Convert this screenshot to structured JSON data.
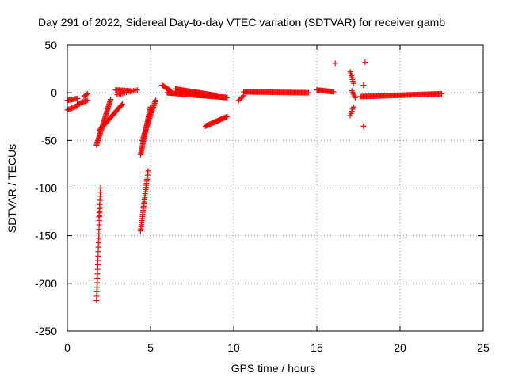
{
  "chart_data": {
    "type": "scatter",
    "title": "Day 291 of 2022, Sidereal Day-to-day VTEC variation (SDTVAR) for receiver gamb",
    "xlabel": "GPS time / hours",
    "ylabel": "SDTVAR / TECUs",
    "xlim": [
      0,
      25
    ],
    "ylim": [
      -250,
      50
    ],
    "xticks": [
      0,
      5,
      10,
      15,
      20,
      25
    ],
    "yticks": [
      50,
      0,
      -50,
      -100,
      -150,
      -200,
      -250
    ],
    "xtick_labels": [
      "0",
      "5",
      "10",
      "15",
      "20",
      "25"
    ],
    "ytick_labels": [
      "50",
      "0",
      "-50",
      "-100",
      "-150",
      "-200",
      "-250"
    ],
    "grid": true,
    "marker": "+",
    "color": "#ff0000",
    "segments": [
      {
        "x0": 0.0,
        "x1": 0.6,
        "y0": -8,
        "y1": -6,
        "n": 10
      },
      {
        "x0": 0.0,
        "x1": 0.6,
        "y0": -18,
        "y1": -14,
        "n": 10
      },
      {
        "x0": 0.6,
        "x1": 1.2,
        "y0": -12,
        "y1": -8,
        "n": 10
      },
      {
        "x0": 1.0,
        "x1": 1.2,
        "y0": -4,
        "y1": -1,
        "n": 4
      },
      {
        "x0": 1.75,
        "x1": 2.6,
        "y0": -55,
        "y1": -7,
        "n": 40
      },
      {
        "x0": 1.9,
        "x1": 3.3,
        "y0": -40,
        "y1": -12,
        "n": 30
      },
      {
        "x0": 1.75,
        "x1": 1.95,
        "y0": -218,
        "y1": -120,
        "n": 22
      },
      {
        "x0": 1.9,
        "x1": 2.0,
        "y0": -130,
        "y1": -100,
        "n": 8
      },
      {
        "x0": 2.9,
        "x1": 3.8,
        "y0": 3,
        "y1": 2,
        "n": 14
      },
      {
        "x0": 3.0,
        "x1": 4.2,
        "y0": -2,
        "y1": 3,
        "n": 12
      },
      {
        "x0": 4.4,
        "x1": 5.0,
        "y0": -65,
        "y1": -15,
        "n": 40
      },
      {
        "x0": 4.5,
        "x1": 5.3,
        "y0": -50,
        "y1": -8,
        "n": 30
      },
      {
        "x0": 4.4,
        "x1": 4.85,
        "y0": -145,
        "y1": -82,
        "n": 30
      },
      {
        "x0": 5.7,
        "x1": 6.2,
        "y0": 8,
        "y1": 2,
        "n": 10
      },
      {
        "x0": 6.0,
        "x1": 9.6,
        "y0": 0,
        "y1": -5,
        "n": 70
      },
      {
        "x0": 6.5,
        "x1": 9.0,
        "y0": 4,
        "y1": -3,
        "n": 45
      },
      {
        "x0": 8.3,
        "x1": 9.6,
        "y0": -35,
        "y1": -25,
        "n": 25
      },
      {
        "x0": 10.3,
        "x1": 10.6,
        "y0": -8,
        "y1": -3,
        "n": 5
      },
      {
        "x0": 10.6,
        "x1": 14.5,
        "y0": 1,
        "y1": 0,
        "n": 65
      },
      {
        "x0": 15.0,
        "x1": 16.0,
        "y0": 3,
        "y1": 1,
        "n": 18
      },
      {
        "x0": 16.1,
        "x1": 16.1,
        "y0": 31,
        "y1": 31,
        "n": 1
      },
      {
        "x0": 17.0,
        "x1": 17.2,
        "y0": 22,
        "y1": 10,
        "n": 7
      },
      {
        "x0": 17.0,
        "x1": 17.2,
        "y0": -24,
        "y1": -15,
        "n": 5
      },
      {
        "x0": 17.1,
        "x1": 17.3,
        "y0": 2,
        "y1": -5,
        "n": 5
      },
      {
        "x0": 17.9,
        "x1": 17.9,
        "y0": 32,
        "y1": 32,
        "n": 1
      },
      {
        "x0": 17.8,
        "x1": 17.8,
        "y0": 8,
        "y1": 8,
        "n": 1
      },
      {
        "x0": 17.8,
        "x1": 17.8,
        "y0": -35,
        "y1": -35,
        "n": 1
      },
      {
        "x0": 17.6,
        "x1": 22.5,
        "y0": -4,
        "y1": -1,
        "n": 80
      }
    ]
  }
}
